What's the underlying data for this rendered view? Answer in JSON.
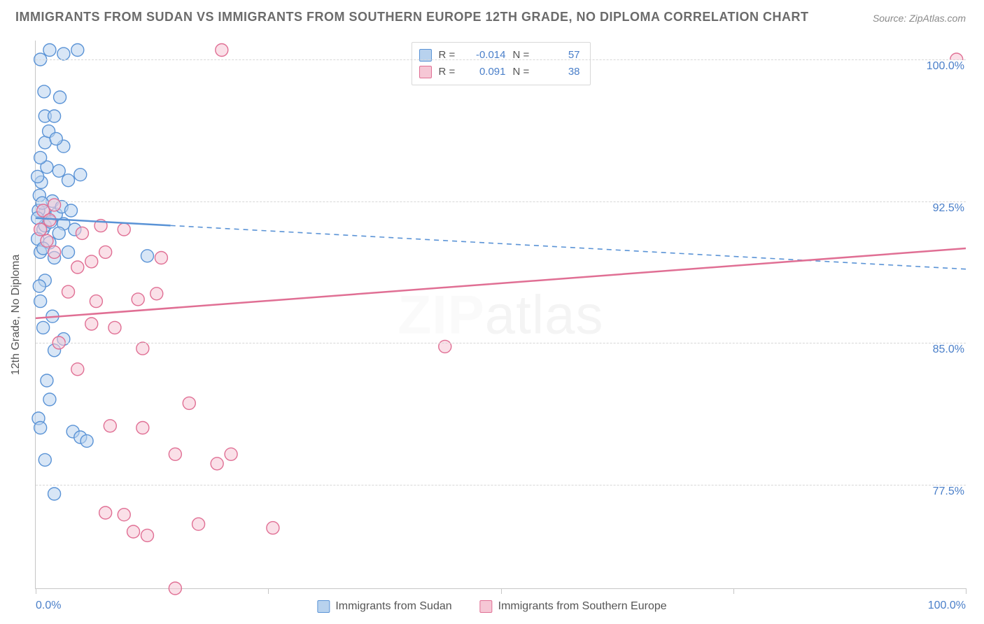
{
  "title": "IMMIGRANTS FROM SUDAN VS IMMIGRANTS FROM SOUTHERN EUROPE 12TH GRADE, NO DIPLOMA CORRELATION CHART",
  "source": "Source: ZipAtlas.com",
  "watermark": {
    "bold": "ZIP",
    "rest": "atlas"
  },
  "chart": {
    "type": "scatter",
    "xlim": [
      0,
      100
    ],
    "ylim": [
      72,
      101
    ],
    "yaxis_title": "12th Grade, No Diploma",
    "y_gridlines": [
      77.5,
      85.0,
      92.5,
      100.0
    ],
    "y_tick_labels": [
      "77.5%",
      "85.0%",
      "92.5%",
      "100.0%"
    ],
    "x_ticks": [
      0,
      25,
      50,
      75,
      100
    ],
    "x_min_label": "0.0%",
    "x_max_label": "100.0%",
    "grid_color": "#d7d7d7",
    "axis_color": "#c6c6c6",
    "background_color": "#ffffff",
    "label_color": "#4a7fc9",
    "label_fontsize": 16,
    "title_fontsize": 18,
    "title_color": "#6b6b6b",
    "series": [
      {
        "name": "Immigrants from Sudan",
        "color_fill": "#b8d2ee",
        "color_stroke": "#5a93d6",
        "marker_radius": 9,
        "fill_opacity": 0.55,
        "R": "-0.014",
        "N": "57",
        "trend": {
          "y_at_x0": 91.6,
          "y_at_x100": 88.9,
          "solid_until_x": 14.5,
          "stroke_width": 2.5
        },
        "points": [
          [
            0.5,
            100.0
          ],
          [
            1.5,
            100.5
          ],
          [
            3.0,
            100.3
          ],
          [
            4.5,
            100.5
          ],
          [
            1.0,
            97.0
          ],
          [
            2.0,
            97.0
          ],
          [
            1.0,
            95.6
          ],
          [
            3.0,
            95.4
          ],
          [
            1.2,
            94.3
          ],
          [
            2.5,
            94.1
          ],
          [
            3.5,
            93.6
          ],
          [
            4.8,
            93.9
          ],
          [
            0.4,
            92.8
          ],
          [
            1.8,
            92.5
          ],
          [
            1.0,
            91.9
          ],
          [
            2.2,
            91.8
          ],
          [
            0.8,
            91.0
          ],
          [
            3.0,
            91.3
          ],
          [
            4.2,
            91.0
          ],
          [
            1.5,
            90.3
          ],
          [
            0.5,
            89.8
          ],
          [
            2.0,
            89.5
          ],
          [
            1.0,
            88.3
          ],
          [
            3.5,
            89.8
          ],
          [
            12.0,
            89.6
          ],
          [
            0.5,
            87.2
          ],
          [
            1.8,
            86.4
          ],
          [
            3.0,
            85.2
          ],
          [
            4.0,
            80.3
          ],
          [
            4.8,
            80.0
          ],
          [
            0.8,
            85.8
          ],
          [
            2.0,
            84.6
          ],
          [
            1.2,
            83.0
          ],
          [
            0.3,
            81.0
          ],
          [
            1.0,
            78.8
          ],
          [
            2.0,
            77.0
          ],
          [
            5.5,
            79.8
          ],
          [
            0.5,
            80.5
          ],
          [
            1.5,
            82.0
          ],
          [
            0.2,
            90.5
          ],
          [
            2.8,
            92.2
          ],
          [
            0.6,
            93.5
          ],
          [
            1.4,
            96.2
          ],
          [
            0.9,
            98.3
          ],
          [
            2.6,
            98.0
          ],
          [
            0.3,
            92.0
          ],
          [
            3.8,
            92.0
          ],
          [
            1.0,
            91.2
          ],
          [
            2.5,
            90.8
          ],
          [
            0.4,
            88.0
          ],
          [
            0.2,
            91.6
          ],
          [
            0.7,
            92.4
          ],
          [
            1.6,
            91.4
          ],
          [
            0.5,
            94.8
          ],
          [
            2.2,
            95.8
          ],
          [
            0.8,
            90.0
          ],
          [
            0.2,
            93.8
          ]
        ]
      },
      {
        "name": "Immigrants from Southern Europe",
        "color_fill": "#f6c7d5",
        "color_stroke": "#e06f94",
        "marker_radius": 9,
        "fill_opacity": 0.55,
        "R": "0.091",
        "N": "38",
        "trend": {
          "y_at_x0": 86.3,
          "y_at_x100": 90.0,
          "solid_until_x": 100,
          "stroke_width": 2.5
        },
        "points": [
          [
            20.0,
            100.5
          ],
          [
            99.0,
            100.0
          ],
          [
            0.8,
            92.0
          ],
          [
            1.5,
            91.5
          ],
          [
            2.0,
            92.3
          ],
          [
            0.5,
            91.0
          ],
          [
            1.2,
            90.4
          ],
          [
            5.0,
            90.8
          ],
          [
            7.0,
            91.2
          ],
          [
            9.5,
            91.0
          ],
          [
            4.5,
            89.0
          ],
          [
            6.0,
            89.3
          ],
          [
            7.5,
            89.8
          ],
          [
            13.5,
            89.5
          ],
          [
            3.5,
            87.7
          ],
          [
            6.5,
            87.2
          ],
          [
            11.0,
            87.3
          ],
          [
            13.0,
            87.6
          ],
          [
            44.0,
            84.8
          ],
          [
            6.0,
            86.0
          ],
          [
            8.5,
            85.8
          ],
          [
            2.5,
            85.0
          ],
          [
            4.5,
            83.6
          ],
          [
            11.5,
            84.7
          ],
          [
            16.5,
            81.8
          ],
          [
            8.0,
            80.6
          ],
          [
            11.5,
            80.5
          ],
          [
            15.0,
            79.1
          ],
          [
            21.0,
            79.1
          ],
          [
            19.5,
            78.6
          ],
          [
            7.5,
            76.0
          ],
          [
            9.5,
            75.9
          ],
          [
            10.5,
            75.0
          ],
          [
            17.5,
            75.4
          ],
          [
            12.0,
            74.8
          ],
          [
            25.5,
            75.2
          ],
          [
            15.0,
            72.0
          ],
          [
            2.0,
            89.8
          ]
        ]
      }
    ],
    "legend_top": {
      "R_label": "R =",
      "N_label": "N ="
    },
    "legend_bottom": [
      "Immigrants from Sudan",
      "Immigrants from Southern Europe"
    ]
  }
}
